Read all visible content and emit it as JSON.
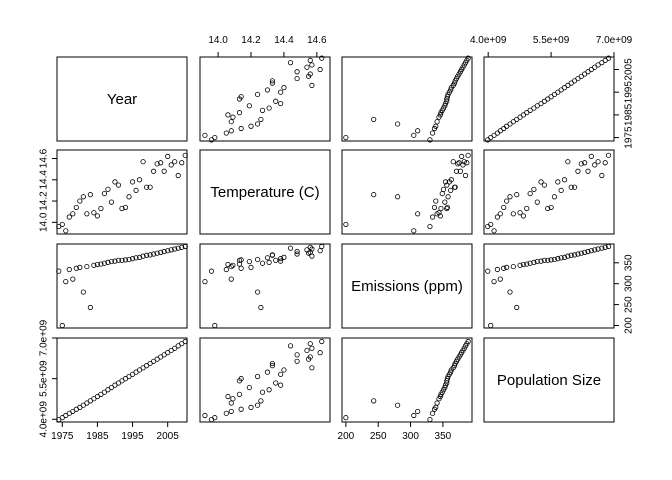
{
  "chart_data": {
    "type": "scatter",
    "variables": [
      {
        "key": "year",
        "label": "Year",
        "range": [
          1973.5,
          2010.5
        ],
        "ticks": [
          1975,
          1985,
          1995,
          2005
        ],
        "tick_labels": [
          "1975",
          "1985",
          "1995",
          "2005"
        ]
      },
      {
        "key": "temp",
        "label": "Temperature (C)",
        "range": [
          13.89,
          14.68
        ],
        "ticks": [
          14.0,
          14.2,
          14.4,
          14.6
        ],
        "tick_labels": [
          "14.0",
          "14.2",
          "14.4",
          "14.6"
        ]
      },
      {
        "key": "emissions",
        "label": "Emissions (ppm)",
        "range": [
          194,
          395
        ],
        "ticks": [
          200,
          250,
          300,
          350
        ],
        "tick_labels": [
          "200",
          "250",
          "300",
          "350"
        ]
      },
      {
        "key": "population",
        "label": "Population Size",
        "range": [
          3900000000,
          7000000000
        ],
        "ticks": [
          4000000000,
          5500000000,
          7000000000
        ],
        "tick_labels": [
          "4.0e+09",
          "5.5e+09",
          "7.0e+09"
        ]
      }
    ],
    "records": [
      {
        "year": 1974,
        "temp": 13.96,
        "emissions": 330,
        "population": 3990000000
      },
      {
        "year": 1975,
        "temp": 13.98,
        "emissions": 200,
        "population": 4060000000
      },
      {
        "year": 1976,
        "temp": 13.92,
        "emissions": 305,
        "population": 4140000000
      },
      {
        "year": 1977,
        "temp": 14.05,
        "emissions": 334,
        "population": 4220000000
      },
      {
        "year": 1978,
        "temp": 14.08,
        "emissions": 311,
        "population": 4290000000
      },
      {
        "year": 1979,
        "temp": 14.14,
        "emissions": 337,
        "population": 4370000000
      },
      {
        "year": 1980,
        "temp": 14.2,
        "emissions": 339,
        "population": 4440000000
      },
      {
        "year": 1981,
        "temp": 14.24,
        "emissions": 280,
        "population": 4520000000
      },
      {
        "year": 1982,
        "temp": 14.08,
        "emissions": 341,
        "population": 4600000000
      },
      {
        "year": 1983,
        "temp": 14.26,
        "emissions": 243,
        "population": 4680000000
      },
      {
        "year": 1984,
        "temp": 14.09,
        "emissions": 344,
        "population": 4760000000
      },
      {
        "year": 1985,
        "temp": 14.06,
        "emissions": 346,
        "population": 4840000000
      },
      {
        "year": 1986,
        "temp": 14.13,
        "emissions": 347,
        "population": 4920000000
      },
      {
        "year": 1987,
        "temp": 14.27,
        "emissions": 349,
        "population": 5000000000
      },
      {
        "year": 1988,
        "temp": 14.31,
        "emissions": 351,
        "population": 5090000000
      },
      {
        "year": 1989,
        "temp": 14.19,
        "emissions": 353,
        "population": 5170000000
      },
      {
        "year": 1990,
        "temp": 14.38,
        "emissions": 354,
        "population": 5260000000
      },
      {
        "year": 1991,
        "temp": 14.35,
        "emissions": 356,
        "population": 5340000000
      },
      {
        "year": 1992,
        "temp": 14.13,
        "emissions": 356,
        "population": 5420000000
      },
      {
        "year": 1993,
        "temp": 14.14,
        "emissions": 357,
        "population": 5500000000
      },
      {
        "year": 1994,
        "temp": 14.24,
        "emissions": 358,
        "population": 5580000000
      },
      {
        "year": 1995,
        "temp": 14.38,
        "emissions": 360,
        "population": 5660000000
      },
      {
        "year": 1996,
        "temp": 14.3,
        "emissions": 362,
        "population": 5740000000
      },
      {
        "year": 1997,
        "temp": 14.4,
        "emissions": 363,
        "population": 5820000000
      },
      {
        "year": 1998,
        "temp": 14.57,
        "emissions": 366,
        "population": 5900000000
      },
      {
        "year": 1999,
        "temp": 14.33,
        "emissions": 368,
        "population": 5980000000
      },
      {
        "year": 2000,
        "temp": 14.33,
        "emissions": 369,
        "population": 6060000000
      },
      {
        "year": 2001,
        "temp": 14.48,
        "emissions": 371,
        "population": 6140000000
      },
      {
        "year": 2002,
        "temp": 14.55,
        "emissions": 373,
        "population": 6220000000
      },
      {
        "year": 2003,
        "temp": 14.56,
        "emissions": 375,
        "population": 6300000000
      },
      {
        "year": 2004,
        "temp": 14.48,
        "emissions": 377,
        "population": 6380000000
      },
      {
        "year": 2005,
        "temp": 14.62,
        "emissions": 379,
        "population": 6460000000
      },
      {
        "year": 2006,
        "temp": 14.54,
        "emissions": 381,
        "population": 6540000000
      },
      {
        "year": 2007,
        "temp": 14.57,
        "emissions": 383,
        "population": 6620000000
      },
      {
        "year": 2008,
        "temp": 14.44,
        "emissions": 385,
        "population": 6710000000
      },
      {
        "year": 2009,
        "temp": 14.56,
        "emissions": 387,
        "population": 6790000000
      },
      {
        "year": 2010,
        "temp": 14.63,
        "emissions": 389,
        "population": 6870000000
      }
    ],
    "grid": false,
    "legend": "none"
  }
}
